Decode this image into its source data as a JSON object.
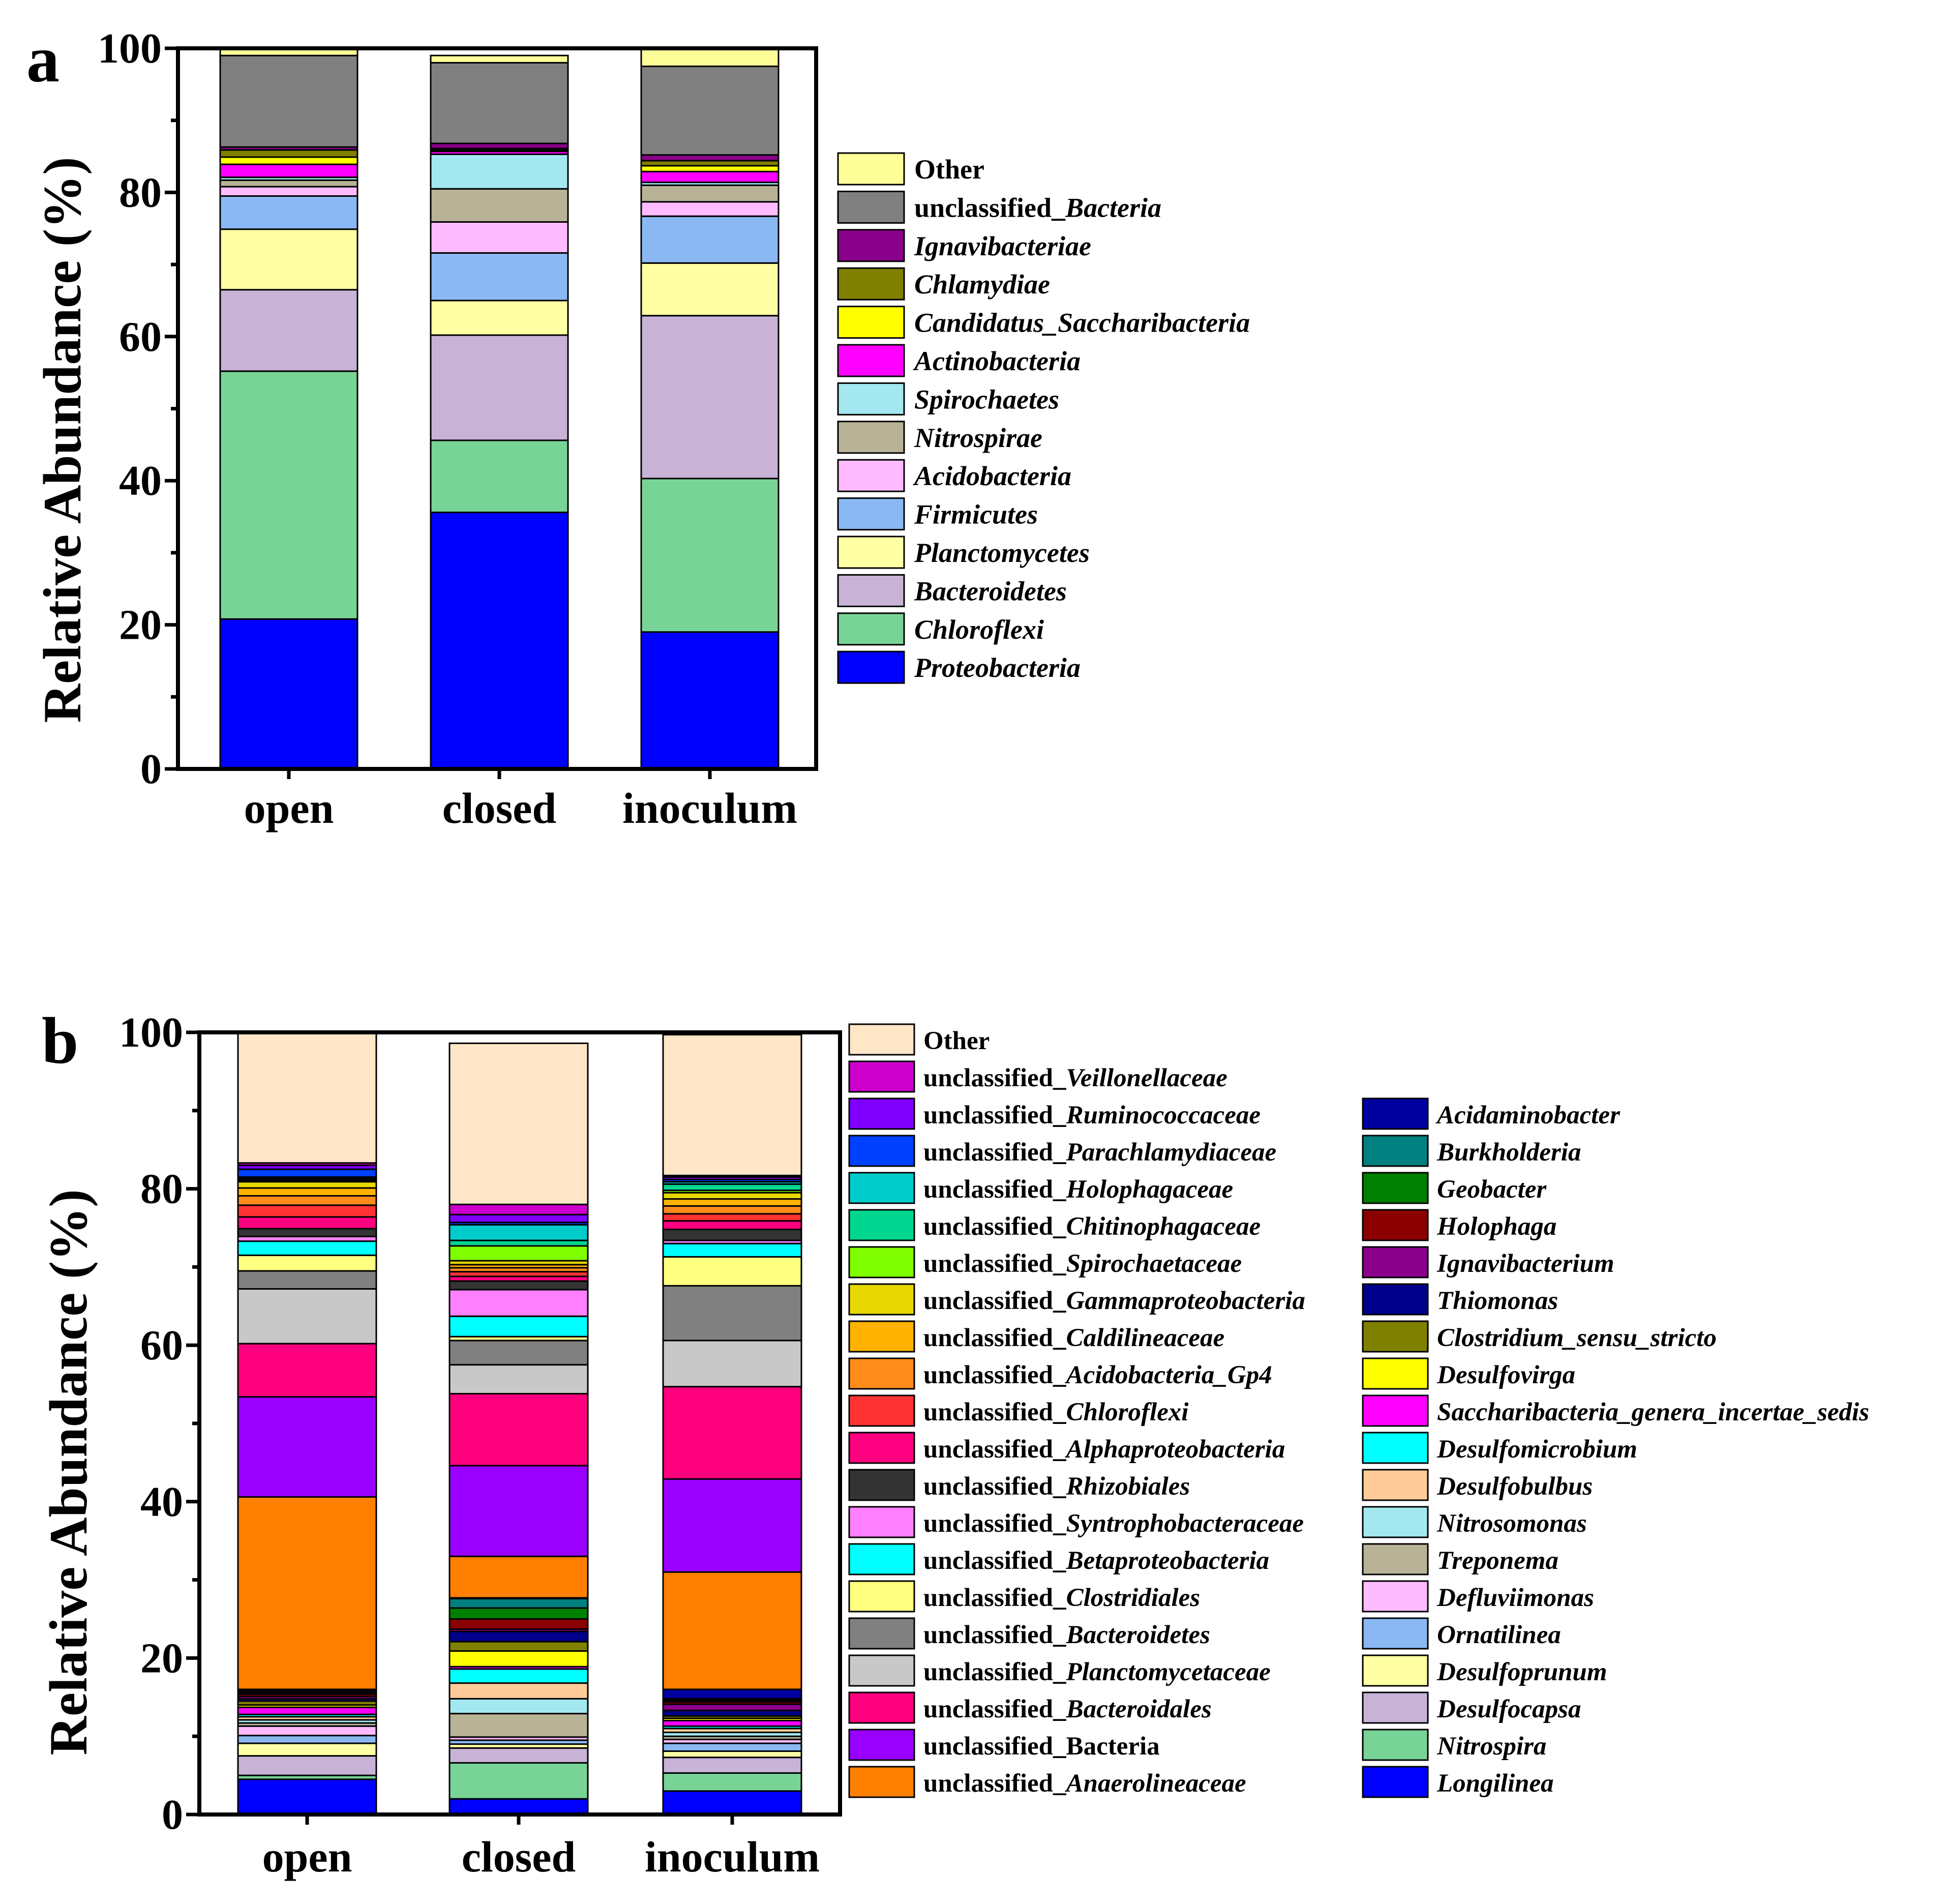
{
  "chart_data": [
    {
      "panel_label": "a",
      "type": "bar",
      "stacked": true,
      "ylabel": "Relative Abundance (%)",
      "xlabel": "",
      "ylim": [
        0,
        100
      ],
      "yticks": [
        "0",
        "20",
        "40",
        "60",
        "80",
        "100"
      ],
      "categories": [
        "open",
        "closed",
        "inoculum"
      ],
      "legend_position": "right",
      "series": [
        {
          "name": "Proteobacteria",
          "prefix": "",
          "italic": "Proteobacteria",
          "color": "#0000FF",
          "values": [
            20.8,
            35.6,
            19.0
          ]
        },
        {
          "name": "Chloroflexi",
          "prefix": "",
          "italic": "Chloroflexi",
          "color": "#77D496",
          "values": [
            34.4,
            10.0,
            21.3
          ]
        },
        {
          "name": "Bacteroidetes",
          "prefix": "",
          "italic": "Bacteroidetes",
          "color": "#C8B3D7",
          "values": [
            11.3,
            14.6,
            22.6
          ]
        },
        {
          "name": "Planctomycetes",
          "prefix": "",
          "italic": "Planctomycetes",
          "color": "#FFFFA3",
          "values": [
            8.4,
            4.8,
            7.3
          ]
        },
        {
          "name": "Firmicutes",
          "prefix": "",
          "italic": "Firmicutes",
          "color": "#8AB8F2",
          "values": [
            4.6,
            6.6,
            6.5
          ]
        },
        {
          "name": "Acidobacteria",
          "prefix": "",
          "italic": "Acidobacteria",
          "color": "#FFBBFF",
          "values": [
            1.3,
            4.3,
            2.0
          ]
        },
        {
          "name": "Nitrospirae",
          "prefix": "",
          "italic": "Nitrospirae",
          "color": "#B8B396",
          "values": [
            0.9,
            4.6,
            2.3
          ]
        },
        {
          "name": "Spirochaetes",
          "prefix": "",
          "italic": "Spirochaetes",
          "color": "#A3E8F0",
          "values": [
            0.4,
            4.8,
            0.4
          ]
        },
        {
          "name": "Actinobacteria",
          "prefix": "",
          "italic": "Actinobacteria",
          "color": "#FF00FF",
          "values": [
            1.8,
            0.4,
            1.5
          ]
        },
        {
          "name": "Candidatus_Saccharibacteria",
          "prefix": "",
          "italic": "Candidatus_Saccharibacteria",
          "color": "#FFFF00",
          "values": [
            1.0,
            0.2,
            0.8
          ]
        },
        {
          "name": "Chlamydiae",
          "prefix": "",
          "italic": "Chlamydiae",
          "color": "#808000",
          "values": [
            1.0,
            0.2,
            0.7
          ]
        },
        {
          "name": "Ignavibacteriae",
          "prefix": "",
          "italic": "Ignavibacteriae",
          "color": "#8B008B",
          "values": [
            0.4,
            0.7,
            0.8
          ]
        },
        {
          "name": "unclassified_Bacteria",
          "prefix": "unclassified_",
          "italic": "Bacteria",
          "color": "#808080",
          "values": [
            12.7,
            11.2,
            12.3
          ]
        },
        {
          "name": "Other",
          "prefix": "Other",
          "italic": "",
          "color": "#FFFF99",
          "values": [
            1.0,
            1.0,
            2.5
          ]
        }
      ]
    },
    {
      "panel_label": "b",
      "type": "bar",
      "stacked": true,
      "ylabel": "Relative Abundance (%)",
      "xlabel": "",
      "ylim": [
        0,
        100
      ],
      "yticks": [
        "0",
        "20",
        "40",
        "60",
        "80",
        "100"
      ],
      "categories": [
        "open",
        "closed",
        "inoculum"
      ],
      "legend_position": "right",
      "series": [
        {
          "name": "Longilinea",
          "prefix": "",
          "italic": "Longilinea",
          "color": "#0000FF",
          "values": [
            4.5,
            2.0,
            3.0
          ]
        },
        {
          "name": "Nitrospira",
          "prefix": "",
          "italic": "Nitrospira",
          "color": "#77D496",
          "values": [
            0.5,
            4.6,
            2.3
          ]
        },
        {
          "name": "Desulfocapsa",
          "prefix": "",
          "italic": "Desulfocapsa",
          "color": "#C8B3D7",
          "values": [
            2.5,
            1.9,
            2.0
          ]
        },
        {
          "name": "Desulfoprunum",
          "prefix": "",
          "italic": "Desulfoprunum",
          "color": "#FFFFA3",
          "values": [
            1.6,
            0.5,
            0.8
          ]
        },
        {
          "name": "Ornatilinea",
          "prefix": "",
          "italic": "Ornatilinea",
          "color": "#8AB8F2",
          "values": [
            1.0,
            0.5,
            1.0
          ]
        },
        {
          "name": "Defluviimonas",
          "prefix": "",
          "italic": "Defluviimonas",
          "color": "#FFBBFF",
          "values": [
            1.2,
            0.4,
            0.5
          ]
        },
        {
          "name": "Treponema",
          "prefix": "",
          "italic": "Treponema",
          "color": "#B8B396",
          "values": [
            0.4,
            3.0,
            0.4
          ]
        },
        {
          "name": "Nitrosomonas",
          "prefix": "",
          "italic": "Nitrosomonas",
          "color": "#A3E8F0",
          "values": [
            0.4,
            1.9,
            0.5
          ]
        },
        {
          "name": "Desulfobulbus",
          "prefix": "",
          "italic": "Desulfobulbus",
          "color": "#FFCC99",
          "values": [
            0.4,
            2.0,
            0.5
          ]
        },
        {
          "name": "Desulfomicrobium",
          "prefix": "",
          "italic": "Desulfomicrobium",
          "color": "#00FFFF",
          "values": [
            0.3,
            1.8,
            0.3
          ]
        },
        {
          "name": "Saccharibacteria_genera_incertae_sedis",
          "prefix": "",
          "italic": "Saccharibacteria_genera_incertae_sedis",
          "color": "#FF00FF",
          "values": [
            0.9,
            0.3,
            0.7
          ]
        },
        {
          "name": "Desulfovirga",
          "prefix": "",
          "italic": "Desulfovirga",
          "color": "#FFFF00",
          "values": [
            0.3,
            2.0,
            0.3
          ]
        },
        {
          "name": "Clostridium_sensu_stricto",
          "prefix": "",
          "italic": "Clostridium_sensu_stricto",
          "color": "#808000",
          "values": [
            0.5,
            1.2,
            0.3
          ]
        },
        {
          "name": "Thiomonas",
          "prefix": "",
          "italic": "Thiomonas",
          "color": "#00008B",
          "values": [
            0.3,
            1.3,
            0.7
          ]
        },
        {
          "name": "Ignavibacterium",
          "prefix": "",
          "italic": "Ignavibacterium",
          "color": "#8B008B",
          "values": [
            0.3,
            0.3,
            0.8
          ]
        },
        {
          "name": "Holophaga",
          "prefix": "",
          "italic": "Holophaga",
          "color": "#8B0000",
          "values": [
            0.3,
            1.3,
            0.3
          ]
        },
        {
          "name": "Geobacter",
          "prefix": "",
          "italic": "Geobacter",
          "color": "#008000",
          "values": [
            0.2,
            1.4,
            0.2
          ]
        },
        {
          "name": "Burkholderia",
          "prefix": "",
          "italic": "Burkholderia",
          "color": "#008080",
          "values": [
            0.2,
            1.2,
            0.2
          ]
        },
        {
          "name": "Acidaminobacter",
          "prefix": "",
          "italic": "Acidaminobacter",
          "color": "#0000A0",
          "values": [
            0.2,
            0.1,
            1.2
          ]
        },
        {
          "name": "unclassified_Anaerolineaceae",
          "prefix": "unclassified_",
          "italic": "Anaerolineaceae",
          "color": "#FF8000",
          "values": [
            24.6,
            5.3,
            15.0
          ]
        },
        {
          "name": "unclassified_Bacteria",
          "prefix": "unclassified_Bacteria",
          "italic": "",
          "color": "#9900FF",
          "values": [
            12.8,
            11.6,
            11.9
          ]
        },
        {
          "name": "unclassified_Bacteroidales",
          "prefix": "unclassified_",
          "italic": "Bacteroidales",
          "color": "#FF007F",
          "values": [
            6.8,
            9.2,
            11.8
          ]
        },
        {
          "name": "unclassified_Planctomycetaceae",
          "prefix": "unclassified_",
          "italic": "Planctomycetaceae",
          "color": "#C8C8C8",
          "values": [
            7.0,
            3.7,
            5.9
          ]
        },
        {
          "name": "unclassified_Bacteroidetes",
          "prefix": "unclassified_",
          "italic": "Bacteroidetes",
          "color": "#808080",
          "values": [
            2.3,
            3.1,
            7.0
          ]
        },
        {
          "name": "unclassified_Clostridiales",
          "prefix": "unclassified_",
          "italic": "Clostridiales",
          "color": "#FFFF80",
          "values": [
            2.0,
            0.5,
            3.7
          ]
        },
        {
          "name": "unclassified_Betaproteobacteria",
          "prefix": "unclassified_",
          "italic": "Betaproteobacteria",
          "color": "#00FFFF",
          "values": [
            1.8,
            2.6,
            1.7
          ]
        },
        {
          "name": "unclassified_Syntrophobacteraceae",
          "prefix": "unclassified_",
          "italic": "Syntrophobacteraceae",
          "color": "#FF80FF",
          "values": [
            0.6,
            3.4,
            0.4
          ]
        },
        {
          "name": "unclassified_Rhizobiales",
          "prefix": "unclassified_",
          "italic": "Rhizobiales",
          "color": "#333333",
          "values": [
            1.0,
            1.1,
            1.4
          ]
        },
        {
          "name": "unclassified_Alphaproteobacteria",
          "prefix": "unclassified_",
          "italic": "Alphaproteobacteria",
          "color": "#FF0080",
          "values": [
            1.5,
            0.6,
            1.1
          ]
        },
        {
          "name": "unclassified_Chloroflexi",
          "prefix": "unclassified_",
          "italic": "Chloroflexi",
          "color": "#FF3333",
          "values": [
            1.5,
            0.6,
            0.9
          ]
        },
        {
          "name": "unclassified_Acidobacteria_Gp4",
          "prefix": "unclassified_",
          "italic": "Acidobacteria_Gp4",
          "color": "#FF8C1A",
          "values": [
            1.2,
            0.5,
            1.0
          ]
        },
        {
          "name": "unclassified_Caldilineaceae",
          "prefix": "unclassified_",
          "italic": "Caldilineaceae",
          "color": "#FFB300",
          "values": [
            1.0,
            0.4,
            0.9
          ]
        },
        {
          "name": "unclassified_Gammaproteobacteria",
          "prefix": "unclassified_",
          "italic": "Gammaproteobacteria",
          "color": "#E6D800",
          "values": [
            0.8,
            0.5,
            0.8
          ]
        },
        {
          "name": "unclassified_Spirochaetaceae",
          "prefix": "unclassified_",
          "italic": "Spirochaetaceae",
          "color": "#80FF00",
          "values": [
            0.2,
            1.9,
            0.3
          ]
        },
        {
          "name": "unclassified_Chitinophagaceae",
          "prefix": "unclassified_",
          "italic": "Chitinophagaceae",
          "color": "#00D68F",
          "values": [
            0.2,
            0.7,
            0.8
          ]
        },
        {
          "name": "unclassified_Holophagaceae",
          "prefix": "unclassified_",
          "italic": "Holophagaceae",
          "color": "#00CCCC",
          "values": [
            0.2,
            2.0,
            0.3
          ]
        },
        {
          "name": "unclassified_Parachlamydiaceae",
          "prefix": "unclassified_",
          "italic": "Parachlamydiaceae",
          "color": "#0040FF",
          "values": [
            1.0,
            0.3,
            0.3
          ]
        },
        {
          "name": "unclassified_Ruminococcaceae",
          "prefix": "unclassified_",
          "italic": "Ruminococcaceae",
          "color": "#8000FF",
          "values": [
            0.5,
            1.0,
            0.3
          ]
        },
        {
          "name": "unclassified_Veillonellaceae",
          "prefix": "unclassified_",
          "italic": "Veillonellaceae",
          "color": "#CC00CC",
          "values": [
            0.3,
            1.3,
            0.2
          ]
        },
        {
          "name": "Other",
          "prefix": "Other",
          "italic": "",
          "color": "#FFE6C7",
          "values": [
            16.7,
            20.6,
            18.0
          ]
        }
      ]
    }
  ]
}
